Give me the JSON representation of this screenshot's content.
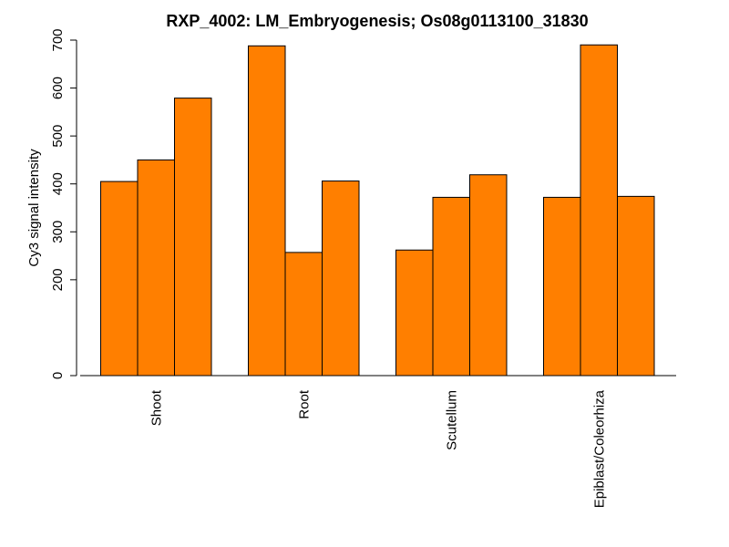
{
  "chart_data": {
    "type": "bar",
    "title": "RXP_4002: LM_Embryogenesis; Os08g0113100_31830",
    "ylabel": "Cy3 signal intensity",
    "xlabel": "",
    "categories": [
      "Shoot",
      "Root",
      "Scutellum",
      "Epiblast/Coleorhiza"
    ],
    "series": [
      {
        "values": [
          405,
          688,
          262,
          372
        ]
      },
      {
        "values": [
          450,
          257,
          372,
          690
        ]
      },
      {
        "values": [
          579,
          406,
          419,
          374
        ]
      }
    ],
    "ylim": [
      0,
      700
    ],
    "yticks": [
      0,
      200,
      300,
      400,
      500,
      600,
      700
    ],
    "grid": false,
    "bar_color": "#FF7F00",
    "bar_edge_color": "#000000"
  }
}
